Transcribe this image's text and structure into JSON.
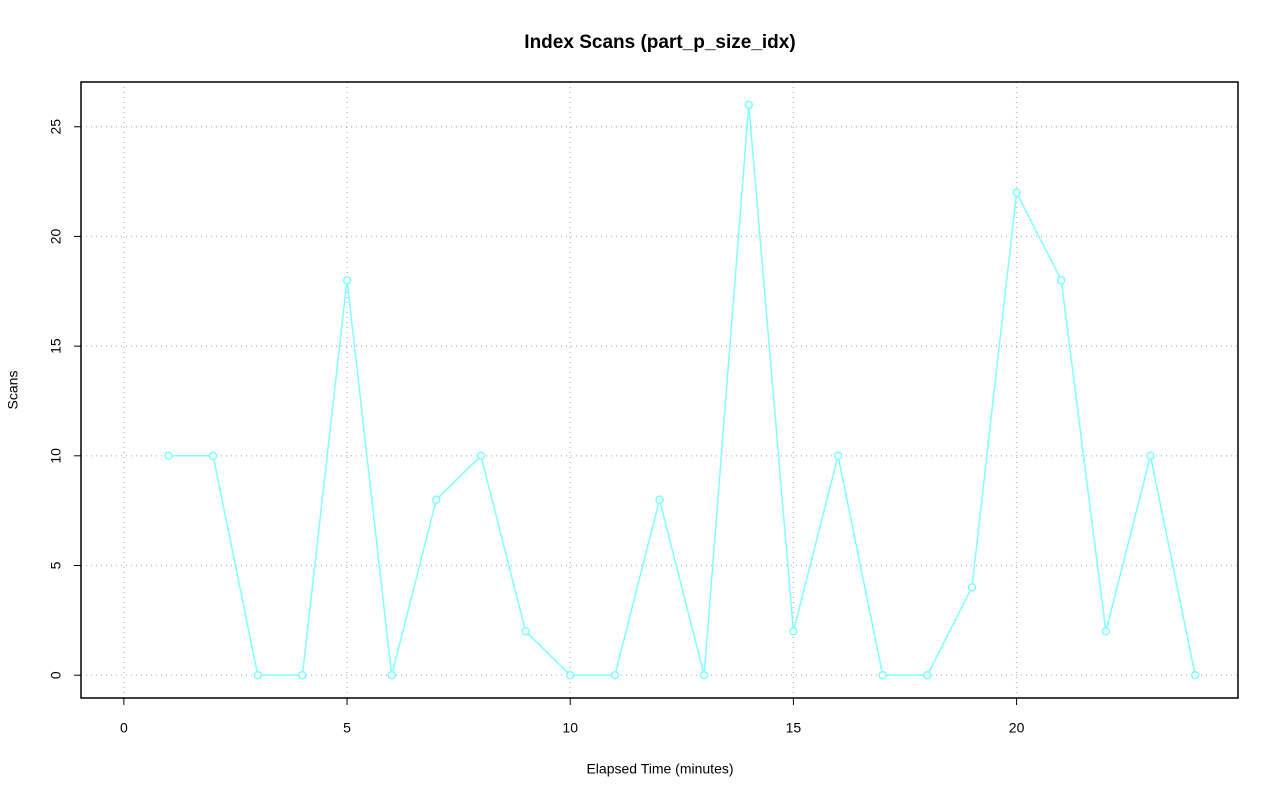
{
  "chart_data": {
    "type": "line",
    "title": "Index Scans (part_p_size_idx)",
    "x_label": "Elapsed Time (minutes)",
    "y_label": "Scans",
    "x": [
      1,
      2,
      3,
      4,
      5,
      6,
      7,
      8,
      9,
      10,
      11,
      12,
      13,
      14,
      15,
      16,
      17,
      18,
      19,
      20,
      21,
      22,
      23,
      24
    ],
    "series": [
      {
        "name": "Scans",
        "color": "#7fffff",
        "values": [
          10,
          10,
          0,
          0,
          18,
          0,
          8,
          10,
          2,
          0,
          0,
          8,
          0,
          26,
          2,
          10,
          0,
          0,
          4,
          22,
          18,
          2,
          10,
          0
        ]
      }
    ],
    "xlim": [
      -0.96,
      24.96
    ],
    "ylim": [
      -1.04,
      27.04
    ],
    "xticks": [
      0,
      5,
      10,
      15,
      20
    ],
    "yticks": [
      0,
      5,
      10,
      15,
      20,
      25
    ],
    "grid": true
  }
}
